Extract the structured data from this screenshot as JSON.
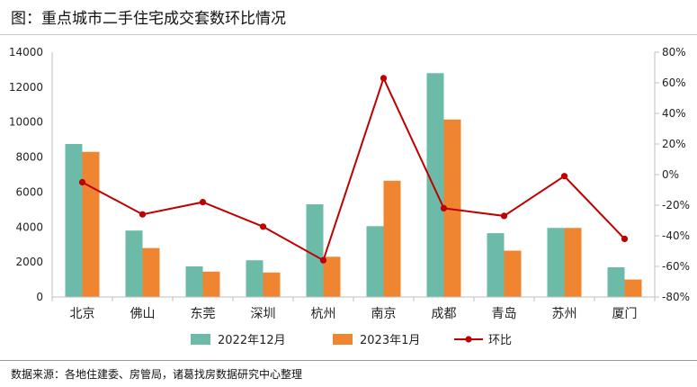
{
  "header": {
    "title": "图：重点城市二手住宅成交套数环比情况"
  },
  "footer": {
    "source": "数据来源：各地住建委、房管局，诸葛找房数据研究中心整理"
  },
  "chart_data": {
    "type": "bar",
    "categories": [
      "北京",
      "佛山",
      "东莞",
      "深圳",
      "杭州",
      "南京",
      "成都",
      "青岛",
      "苏州",
      "厦门"
    ],
    "series": [
      {
        "name": "2022年12月",
        "type": "bar",
        "axis": "left",
        "color": "#6cbba8",
        "values": [
          8750,
          3800,
          1750,
          2100,
          5300,
          4050,
          12800,
          3650,
          3950,
          1700
        ]
      },
      {
        "name": "2023年1月",
        "type": "bar",
        "axis": "left",
        "color": "#ef8431",
        "values": [
          8300,
          2800,
          1450,
          1400,
          2300,
          6650,
          10150,
          2650,
          3950,
          1000
        ]
      },
      {
        "name": "环比",
        "type": "line",
        "axis": "right",
        "color": "#c00000",
        "values": [
          -5,
          -26,
          -18,
          -34,
          -56,
          63,
          -22,
          -27,
          -1,
          -42
        ]
      }
    ],
    "left_axis": {
      "min": 0,
      "max": 14000,
      "ticks": [
        "0",
        "2000",
        "4000",
        "6000",
        "8000",
        "10000",
        "12000",
        "14000"
      ]
    },
    "right_axis": {
      "min": -80,
      "max": 80,
      "ticks": [
        "-80%",
        "-60%",
        "-40%",
        "-20%",
        "0%",
        "20%",
        "40%",
        "60%",
        "80%"
      ]
    }
  }
}
